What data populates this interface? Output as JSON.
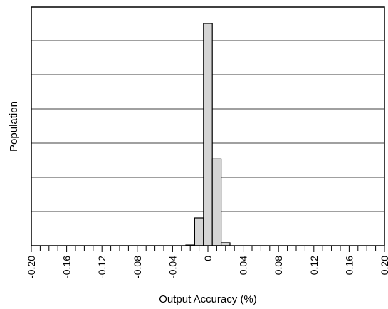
{
  "chart_data": {
    "type": "bar",
    "title": "",
    "xlabel": "Output Accuracy (%)",
    "ylabel": "Population",
    "xlim": [
      -0.2,
      0.2
    ],
    "ylim": [
      0,
      100
    ],
    "grid": "horizontal",
    "x_ticks": [
      "-0.20",
      "-0.16",
      "-0.12",
      "-0.08",
      "-0.04",
      "0",
      "0.04",
      "0.08",
      "0.12",
      "0.16",
      "0.20"
    ],
    "x_tick_values": [
      -0.2,
      -0.16,
      -0.12,
      -0.08,
      -0.04,
      0,
      0.04,
      0.08,
      0.12,
      0.16,
      0.2
    ],
    "bin_width": 0.01,
    "bins": [
      {
        "x": -0.02,
        "value": 0.3
      },
      {
        "x": -0.01,
        "value": 12.5
      },
      {
        "x": 0.0,
        "value": 100
      },
      {
        "x": 0.01,
        "value": 39
      },
      {
        "x": 0.02,
        "value": 1.3
      }
    ],
    "bar_color": "#d4d4d4",
    "bar_edge_color": "#000000"
  }
}
